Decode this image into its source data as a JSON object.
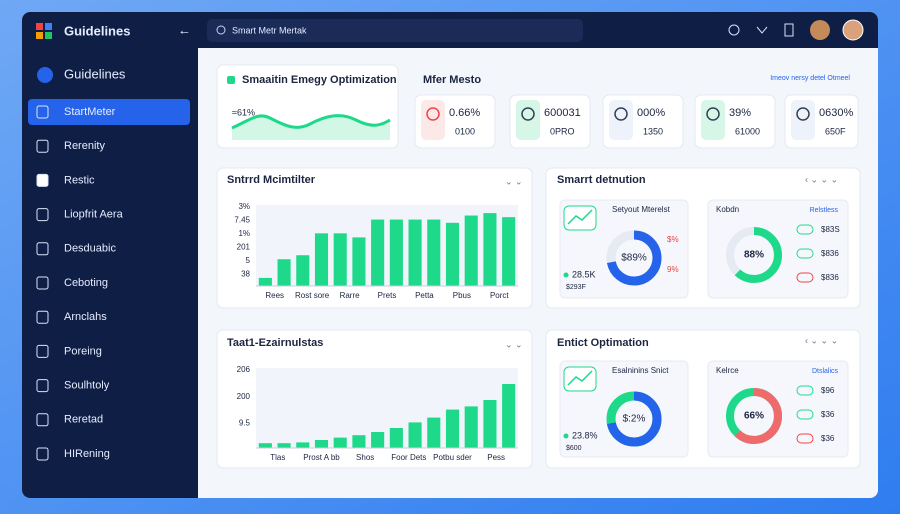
{
  "sidebar": {
    "brand": "Guidelines",
    "section": "Guidelines",
    "items": [
      "StartMeter",
      "Rerenity",
      "Restic",
      "Liopfrit Aera",
      "Desduabic",
      "Ceboting",
      "Arnclahs",
      "Poreing",
      "Soulhtoly",
      "Reretad",
      "HIRening"
    ]
  },
  "search": "Smart Metr Mertak",
  "overview": {
    "title": "Smaaitin Emegy Optimization",
    "label": "≈61%"
  },
  "meters": {
    "title": "Mfer Mesto",
    "note": "Imeov nersy detel Otmeel",
    "cards": [
      {
        "value": "0.66%",
        "sub": "0100"
      },
      {
        "value": "600031",
        "sub": "0PRO"
      },
      {
        "value": "000%",
        "sub": "1350"
      },
      {
        "value": "39%",
        "sub": "61000"
      },
      {
        "value": "0630%",
        "sub": "650F"
      }
    ]
  },
  "chart1": {
    "title": "Sntrrd Mcimtilter",
    "yticks": [
      "3%",
      "7.45",
      "1%",
      "201",
      "5",
      "38"
    ],
    "categories": [
      "Rees",
      "Rost sore",
      "Rarre",
      "Prets",
      "Petta",
      "Pbus",
      "Porct"
    ],
    "values": [
      10,
      33,
      38,
      65,
      65,
      60,
      82,
      82,
      82,
      82,
      78,
      87,
      90,
      85
    ],
    "ylim": [
      0,
      100
    ]
  },
  "chart2": {
    "title": "Taat1-Ezairnulstas",
    "yticks": [
      "206",
      "200",
      "9.5"
    ],
    "categories": [
      "Tlas",
      "Prost A bb",
      "Shos",
      "Foor Dets",
      "Potbu sder",
      "Pess"
    ],
    "values": [
      6,
      6,
      7,
      10,
      13,
      16,
      20,
      25,
      32,
      38,
      48,
      52,
      60,
      80
    ],
    "ylim": [
      0,
      100
    ]
  },
  "panel1": {
    "title": "Smarrt detnution",
    "left": {
      "title": "Setyout Mterelst",
      "center": "$89%",
      "stat": "28.5K",
      "sub": "$293F",
      "tags": [
        "$%",
        "9%"
      ]
    },
    "right": {
      "title": "Kobdn",
      "link": "Relstless",
      "center": "88%",
      "rows": [
        "$83S",
        "$836",
        "$836"
      ]
    }
  },
  "panel2": {
    "title": "Entict Optimation",
    "left": {
      "title": "Esalninins Snict",
      "center": "$:2%",
      "stat": "23.8%",
      "sub": "$600"
    },
    "right": {
      "title": "Kelrce",
      "link": "Dtslalics",
      "center": "66%",
      "rows": [
        "$96",
        "$36",
        "$36"
      ]
    }
  }
}
